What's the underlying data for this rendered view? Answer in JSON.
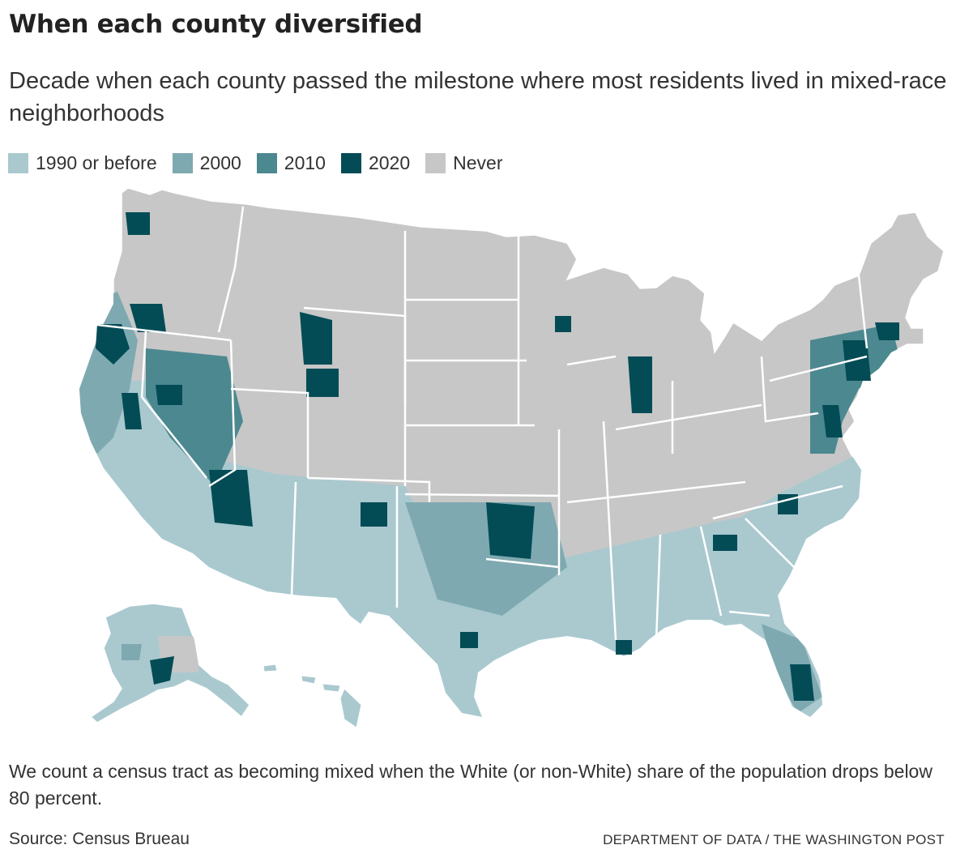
{
  "title": "When each county diversified",
  "subtitle": "Decade when each county passed the milestone where most residents lived in mixed-race neighborhoods",
  "legend": {
    "placement": "top-left, horizontal",
    "items": [
      {
        "label": "1990 or before",
        "color": "#a9c9cf"
      },
      {
        "label": "2000",
        "color": "#7fa9b1"
      },
      {
        "label": "2010",
        "color": "#4c8890"
      },
      {
        "label": "2020",
        "color": "#034c56"
      },
      {
        "label": "Never",
        "color": "#c7c7c7"
      }
    ]
  },
  "map": {
    "type": "choropleth",
    "geography": "U.S. counties (contiguous states, Alaska, Hawaii)",
    "border_color": "#ffffff"
  },
  "note": "We count a census tract as becoming mixed when the White (or non-White) share of the population drops below 80 percent.",
  "source": "Source: Census Brueau",
  "credit": "DEPARTMENT OF DATA / THE WASHINGTON POST"
}
